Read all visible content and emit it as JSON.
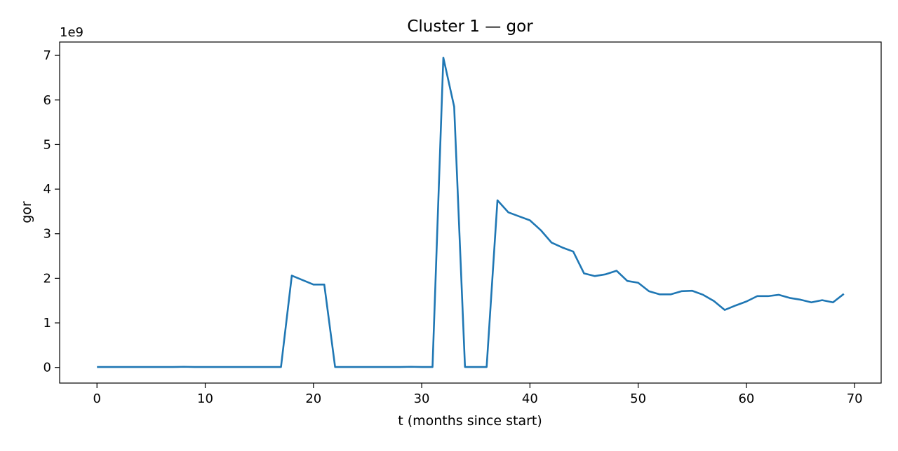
{
  "chart_data": {
    "type": "line",
    "title": "Cluster 1 — gor",
    "xlabel": "t (months since start)",
    "ylabel": "gor",
    "y_offset_label": "1e9",
    "y_multiplier": 1000000000,
    "xlim": [
      -3.45,
      72.45
    ],
    "ylim": [
      -0.35,
      7.3
    ],
    "x_ticks": [
      0,
      10,
      20,
      30,
      40,
      50,
      60,
      70
    ],
    "x_tick_labels": [
      "0",
      "10",
      "20",
      "30",
      "40",
      "50",
      "60",
      "70"
    ],
    "y_ticks": [
      0,
      1,
      2,
      3,
      4,
      5,
      6,
      7
    ],
    "y_tick_labels": [
      "0",
      "1",
      "2",
      "3",
      "4",
      "5",
      "6",
      "7"
    ],
    "grid": false,
    "colors": {
      "series": "#1f77b4",
      "axes": "#000000",
      "background": "#ffffff"
    },
    "series": [
      {
        "x": [
          0,
          1,
          2,
          3,
          4,
          5,
          6,
          7,
          8,
          9,
          10,
          11,
          12,
          13,
          14,
          15,
          16,
          17,
          18,
          19,
          20,
          21,
          22,
          23,
          24,
          25,
          26,
          27,
          28,
          29,
          30,
          31,
          32,
          33,
          34,
          35,
          36,
          37,
          38,
          39,
          40,
          41,
          42,
          43,
          44,
          45,
          46,
          47,
          48,
          49,
          50,
          51,
          52,
          53,
          54,
          55,
          56,
          57,
          58,
          59,
          60,
          61,
          62,
          63,
          64,
          65,
          66,
          67,
          68,
          69
        ],
        "values": [
          0.01,
          0.01,
          0.01,
          0.01,
          0.01,
          0.01,
          0.01,
          0.01,
          0.015,
          0.01,
          0.01,
          0.01,
          0.01,
          0.01,
          0.01,
          0.01,
          0.01,
          0.01,
          2.06,
          1.96,
          1.86,
          1.86,
          0.01,
          0.01,
          0.01,
          0.01,
          0.01,
          0.01,
          0.01,
          0.015,
          0.01,
          0.01,
          6.95,
          5.85,
          0.01,
          0.01,
          0.01,
          3.75,
          3.48,
          3.39,
          3.3,
          3.08,
          2.8,
          2.69,
          2.6,
          2.11,
          2.05,
          2.09,
          2.17,
          1.94,
          1.9,
          1.71,
          1.64,
          1.64,
          1.71,
          1.72,
          1.63,
          1.49,
          1.29,
          1.39,
          1.48,
          1.6,
          1.6,
          1.63,
          1.56,
          1.52,
          1.46,
          1.51,
          1.46,
          1.65
        ]
      }
    ]
  }
}
